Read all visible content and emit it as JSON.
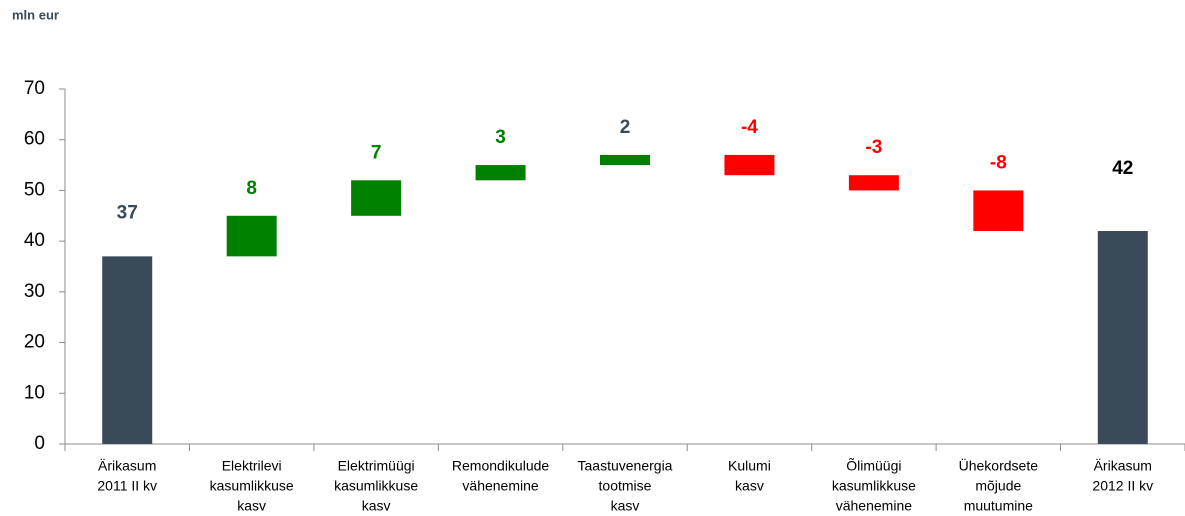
{
  "chart_data": {
    "type": "waterfall",
    "title": "mln eur",
    "categories": [
      [
        "Ärikasum",
        "2011 II kv"
      ],
      [
        "Elektrilevi",
        "kasumlikkuse",
        "kasv"
      ],
      [
        "Elektrimüügi",
        "kasumlikkuse",
        "kasv"
      ],
      [
        "Remondikulude",
        "vähenemine"
      ],
      [
        "Taastuvenergia",
        "tootmise",
        "kasv"
      ],
      [
        "Kulumi",
        "kasv"
      ],
      [
        "Õlimüügi",
        "kasumlikkuse",
        "vähenemine"
      ],
      [
        "Ühekordsete",
        "mõjude",
        "muutumine"
      ],
      [
        "Ärikasum",
        "2012 II kv"
      ]
    ],
    "values": [
      37,
      8,
      7,
      3,
      2,
      -4,
      -3,
      -8,
      42
    ],
    "measure": [
      "absolute",
      "relative",
      "relative",
      "relative",
      "relative",
      "relative",
      "relative",
      "relative",
      "absolute"
    ],
    "colors": {
      "total": "#3a4a58",
      "increase": "#008000",
      "decrease": "#ff0000"
    },
    "label_colors": [
      "#3a4a58",
      "#008000",
      "#008000",
      "#008000",
      "#3a4a58",
      "#ff0000",
      "#ff0000",
      "#ff0000",
      "#000000"
    ],
    "ylim": [
      0,
      70
    ],
    "yticks": [
      0,
      10,
      20,
      30,
      40,
      50,
      60,
      70
    ],
    "grid": false
  }
}
